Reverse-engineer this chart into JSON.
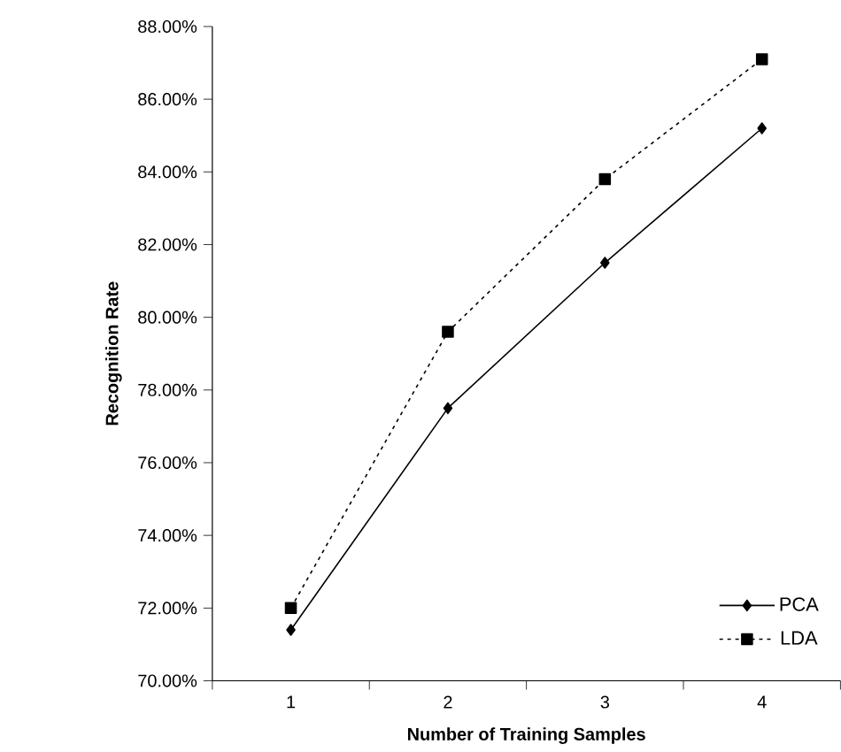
{
  "chart_data": {
    "type": "line",
    "xlabel": "Number of Training Samples",
    "ylabel": "Recognition Rate",
    "categories": [
      "1",
      "2",
      "3",
      "4"
    ],
    "series": [
      {
        "name": "PCA",
        "color": "#000000",
        "marker": "diamond",
        "line_style": "solid",
        "values": [
          71.4,
          77.5,
          81.5,
          85.2
        ]
      },
      {
        "name": "LDA",
        "color": "#000000",
        "marker": "square",
        "line_style": "dotted",
        "values": [
          72.0,
          79.6,
          83.8,
          87.1
        ]
      }
    ],
    "ylim": [
      70,
      88
    ],
    "yticks": [
      {
        "value": 70,
        "label": "70.00%"
      },
      {
        "value": 72,
        "label": "72.00%"
      },
      {
        "value": 74,
        "label": "74.00%"
      },
      {
        "value": 76,
        "label": "76.00%"
      },
      {
        "value": 78,
        "label": "78.00%"
      },
      {
        "value": 80,
        "label": "80.00%"
      },
      {
        "value": 82,
        "label": "82.00%"
      },
      {
        "value": 84,
        "label": "84.00%"
      },
      {
        "value": 86,
        "label": "86.00%"
      },
      {
        "value": 88,
        "label": "88.00%"
      }
    ],
    "grid": false,
    "legend": "bottom right"
  }
}
